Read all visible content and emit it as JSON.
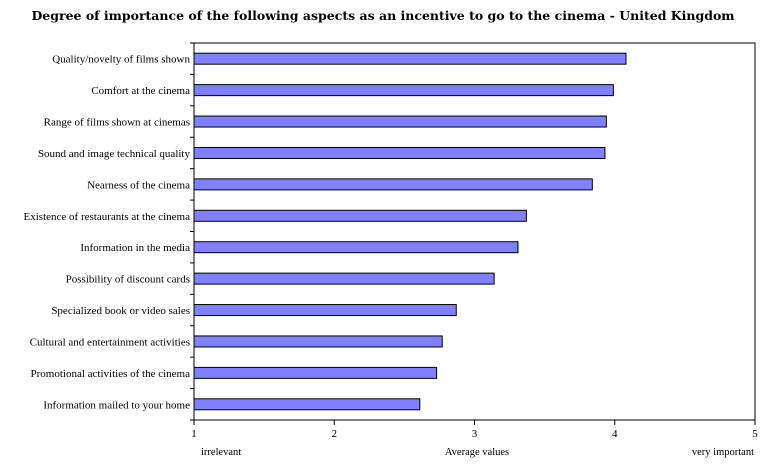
{
  "chart_data": {
    "type": "bar",
    "orientation": "horizontal",
    "title": "Degree of importance of the following aspects as an incentive to go to the cinema - United Kingdom",
    "categories": [
      "Quality/novelty of films shown",
      "Comfort at the cinema",
      "Range of films shown at cinemas",
      "Sound and image technical quality",
      "Nearness of the cinema",
      "Existence of restaurants at the cinema",
      "Information in the media",
      "Possibility of discount cards",
      "Specialized book or video sales",
      "Cultural and entertainment activities",
      "Promotional activities of the cinema",
      "Information mailed to your home"
    ],
    "values": [
      4.08,
      3.99,
      3.94,
      3.93,
      3.84,
      3.37,
      3.31,
      3.14,
      2.87,
      2.77,
      2.73,
      2.61
    ],
    "xlim": [
      1,
      5
    ],
    "xticks": [
      "1",
      "2",
      "3",
      "4",
      "5"
    ],
    "xlabel": "Average values",
    "x_scale_low_label": "irrelevant",
    "x_scale_high_label": "very important",
    "bar_color": "#8080ff",
    "grid": false,
    "legend": false
  }
}
